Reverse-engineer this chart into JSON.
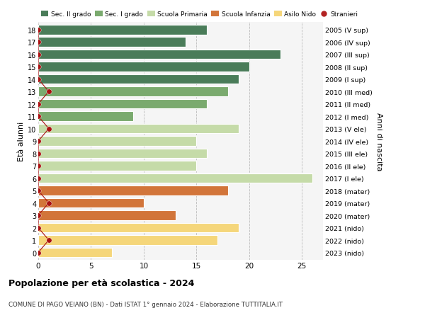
{
  "ages": [
    18,
    17,
    16,
    15,
    14,
    13,
    12,
    11,
    10,
    9,
    8,
    7,
    6,
    5,
    4,
    3,
    2,
    1,
    0
  ],
  "right_labels": [
    "2005 (V sup)",
    "2006 (IV sup)",
    "2007 (III sup)",
    "2008 (II sup)",
    "2009 (I sup)",
    "2010 (III med)",
    "2011 (II med)",
    "2012 (I med)",
    "2013 (V ele)",
    "2014 (IV ele)",
    "2015 (III ele)",
    "2016 (II ele)",
    "2017 (I ele)",
    "2018 (mater)",
    "2019 (mater)",
    "2020 (mater)",
    "2021 (nido)",
    "2022 (nido)",
    "2023 (nido)"
  ],
  "bar_values": [
    16,
    14,
    23,
    20,
    19,
    18,
    16,
    9,
    19,
    15,
    16,
    15,
    26,
    18,
    10,
    13,
    19,
    17,
    7
  ],
  "bar_colors": [
    "#4a7c59",
    "#4a7c59",
    "#4a7c59",
    "#4a7c59",
    "#4a7c59",
    "#7aaa6e",
    "#7aaa6e",
    "#7aaa6e",
    "#c5dba8",
    "#c5dba8",
    "#c5dba8",
    "#c5dba8",
    "#c5dba8",
    "#d2753a",
    "#d2753a",
    "#d2753a",
    "#f5d67a",
    "#f5d67a",
    "#f5d67a"
  ],
  "stranieri_values": [
    0,
    0,
    0,
    0,
    0,
    1,
    0,
    0,
    1,
    0,
    0,
    0,
    0,
    0,
    1,
    0,
    0,
    1,
    0
  ],
  "legend_labels": [
    "Sec. II grado",
    "Sec. I grado",
    "Scuola Primaria",
    "Scuola Infanzia",
    "Asilo Nido",
    "Stranieri"
  ],
  "legend_colors": [
    "#4a7c59",
    "#7aaa6e",
    "#c5dba8",
    "#d2753a",
    "#f5d67a",
    "#b22222"
  ],
  "title": "Popolazione per età scolastica - 2024",
  "subtitle": "COMUNE DI PAGO VEIANO (BN) - Dati ISTAT 1° gennaio 2024 - Elaborazione TUTTITALIA.IT",
  "ylabel_left": "Età alunni",
  "ylabel_right": "Anni di nascita",
  "xlim": [
    0,
    27
  ],
  "xticks": [
    0,
    5,
    10,
    15,
    20,
    25
  ],
  "bg_color": "#ffffff",
  "plot_bg_color": "#f5f5f5",
  "grid_color": "#bbbbbb",
  "bar_height": 0.78,
  "stranieri_color": "#aa1111",
  "stranieri_dot_size": 28
}
